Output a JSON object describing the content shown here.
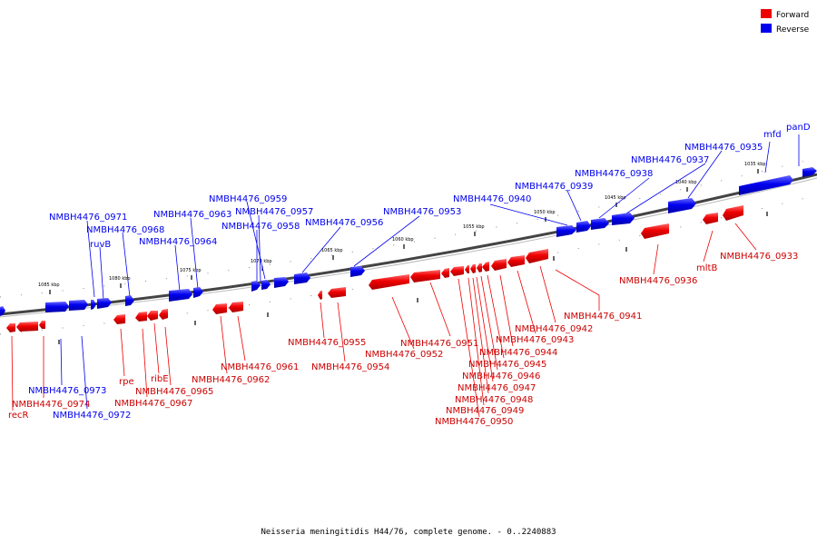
{
  "caption": "Neisseria meningitidis H44/76, complete genome. - 0..2240883",
  "legend": [
    {
      "label": "Forward",
      "color": "#ee0000"
    },
    {
      "label": "Reverse",
      "color": "#0000ee"
    }
  ],
  "ticks": [
    "1085 kbp",
    "1080 kbp",
    "1075 kbp",
    "1070 kbp",
    "1065 kbp",
    "1060 kbp",
    "1055 kbp",
    "1050 kbp",
    "1045 kbp",
    "1040 kbp",
    "1035 kbp"
  ],
  "genes": [
    {
      "name": "mfd",
      "strand": "reverse"
    },
    {
      "name": "panD",
      "strand": "reverse"
    },
    {
      "name": "NMBH4476_0935",
      "strand": "reverse"
    },
    {
      "name": "NMBH4476_0937",
      "strand": "reverse"
    },
    {
      "name": "NMBH4476_0938",
      "strand": "reverse"
    },
    {
      "name": "NMBH4476_0939",
      "strand": "reverse"
    },
    {
      "name": "NMBH4476_0940",
      "strand": "reverse"
    },
    {
      "name": "NMBH4476_0953",
      "strand": "reverse"
    },
    {
      "name": "NMBH4476_0956",
      "strand": "reverse"
    },
    {
      "name": "NMBH4476_0959",
      "strand": "reverse"
    },
    {
      "name": "NMBH4476_0957",
      "strand": "reverse"
    },
    {
      "name": "NMBH4476_0958",
      "strand": "reverse"
    },
    {
      "name": "NMBH4476_0963",
      "strand": "reverse"
    },
    {
      "name": "NMBH4476_0964",
      "strand": "reverse"
    },
    {
      "name": "NMBH4476_0971",
      "strand": "reverse"
    },
    {
      "name": "NMBH4476_0968",
      "strand": "reverse"
    },
    {
      "name": "ruvB",
      "strand": "reverse"
    },
    {
      "name": "NMBH4476_0973",
      "strand": "reverse"
    },
    {
      "name": "NMBH4476_0972",
      "strand": "reverse"
    },
    {
      "name": "NMBH4476_0933",
      "strand": "forward"
    },
    {
      "name": "mltB",
      "strand": "forward"
    },
    {
      "name": "NMBH4476_0936",
      "strand": "forward"
    },
    {
      "name": "NMBH4476_0941",
      "strand": "forward"
    },
    {
      "name": "NMBH4476_0942",
      "strand": "forward"
    },
    {
      "name": "NMBH4476_0943",
      "strand": "forward"
    },
    {
      "name": "NMBH4476_0944",
      "strand": "forward"
    },
    {
      "name": "NMBH4476_0945",
      "strand": "forward"
    },
    {
      "name": "NMBH4476_0946",
      "strand": "forward"
    },
    {
      "name": "NMBH4476_0947",
      "strand": "forward"
    },
    {
      "name": "NMBH4476_0948",
      "strand": "forward"
    },
    {
      "name": "NMBH4476_0949",
      "strand": "forward"
    },
    {
      "name": "NMBH4476_0950",
      "strand": "forward"
    },
    {
      "name": "NMBH4476_0951",
      "strand": "forward"
    },
    {
      "name": "NMBH4476_0952",
      "strand": "forward"
    },
    {
      "name": "NMBH4476_0954",
      "strand": "forward"
    },
    {
      "name": "NMBH4476_0955",
      "strand": "forward"
    },
    {
      "name": "NMBH4476_0961",
      "strand": "forward"
    },
    {
      "name": "NMBH4476_0962",
      "strand": "forward"
    },
    {
      "name": "ribE",
      "strand": "forward"
    },
    {
      "name": "NMBH4476_0965",
      "strand": "forward"
    },
    {
      "name": "NMBH4476_0967",
      "strand": "forward"
    },
    {
      "name": "rpe",
      "strand": "forward"
    },
    {
      "name": "NMBH4476_0974",
      "strand": "forward"
    },
    {
      "name": "recR",
      "strand": "forward"
    }
  ]
}
